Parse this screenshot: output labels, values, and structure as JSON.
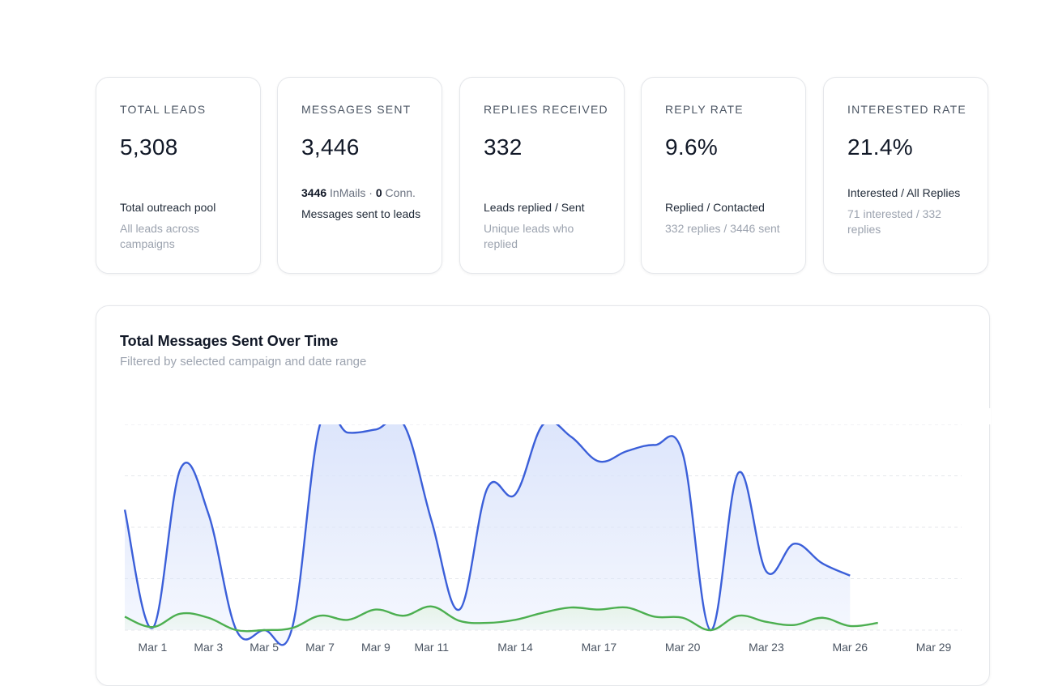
{
  "cards": [
    {
      "title": "TOTAL LEADS",
      "value": "5,308",
      "subtitle": "Total outreach pool",
      "detail": "All leads across campaigns"
    },
    {
      "title": "MESSAGES SENT",
      "value": "3,446",
      "inmails_count": "3446",
      "inmails_label": "InMails",
      "conn_count": "0",
      "conn_label": "Conn.",
      "separator": "·",
      "detail": "Messages sent to leads"
    },
    {
      "title": "REPLIES RECEIVED",
      "value": "332",
      "subtitle": "Leads replied / Sent",
      "detail": "Unique leads who replied"
    },
    {
      "title": "REPLY RATE",
      "value": "9.6%",
      "subtitle": "Replied / Contacted",
      "detail": "332 replies / 3446 sent"
    },
    {
      "title": "INTERESTED RATE",
      "value": "21.4%",
      "subtitle": "Interested / All Replies",
      "detail": "71 interested / 332 replies"
    }
  ],
  "chart": {
    "title": "Total Messages Sent Over Time",
    "subtitle": "Filtered by selected campaign and date range"
  },
  "chart_data": {
    "type": "area",
    "x_tick_labels": [
      "Mar 1",
      "Mar 3",
      "Mar 5",
      "Mar 7",
      "Mar 9",
      "Mar 11",
      "Mar 14",
      "Mar 17",
      "Mar 20",
      "Mar 23",
      "Mar 26",
      "Mar 29"
    ],
    "x": [
      "Feb 29",
      "Mar 1",
      "Mar 2",
      "Mar 3",
      "Mar 4",
      "Mar 5",
      "Mar 6",
      "Mar 7",
      "Mar 8",
      "Mar 9",
      "Mar 10",
      "Mar 11",
      "Mar 12",
      "Mar 13",
      "Mar 14",
      "Mar 15",
      "Mar 16",
      "Mar 17",
      "Mar 18",
      "Mar 19",
      "Mar 20",
      "Mar 21",
      "Mar 22",
      "Mar 23",
      "Mar 24",
      "Mar 25",
      "Mar 26",
      "Mar 27",
      "Mar 28",
      "Mar 29",
      "Mar 30"
    ],
    "ylim": [
      0,
      200
    ],
    "grid": true,
    "series": [
      {
        "color": "#3b5fd9",
        "fill": "#dbe4fb",
        "values": [
          117,
          2,
          157,
          113,
          0,
          0,
          2,
          200,
          192,
          195,
          200,
          106,
          20,
          138,
          132,
          200,
          188,
          164,
          174,
          180,
          172,
          0,
          153,
          57,
          84,
          65,
          53,
          null,
          null,
          null,
          null
        ]
      },
      {
        "color": "#4caf50",
        "fill": "#e6f4e8",
        "values": [
          13,
          3,
          16,
          12,
          0,
          0,
          2,
          14,
          10,
          20,
          14,
          23,
          9,
          7,
          10,
          17,
          22,
          20,
          22,
          13,
          12,
          0,
          14,
          8,
          5,
          12,
          4,
          7,
          null,
          null,
          null
        ]
      }
    ]
  }
}
